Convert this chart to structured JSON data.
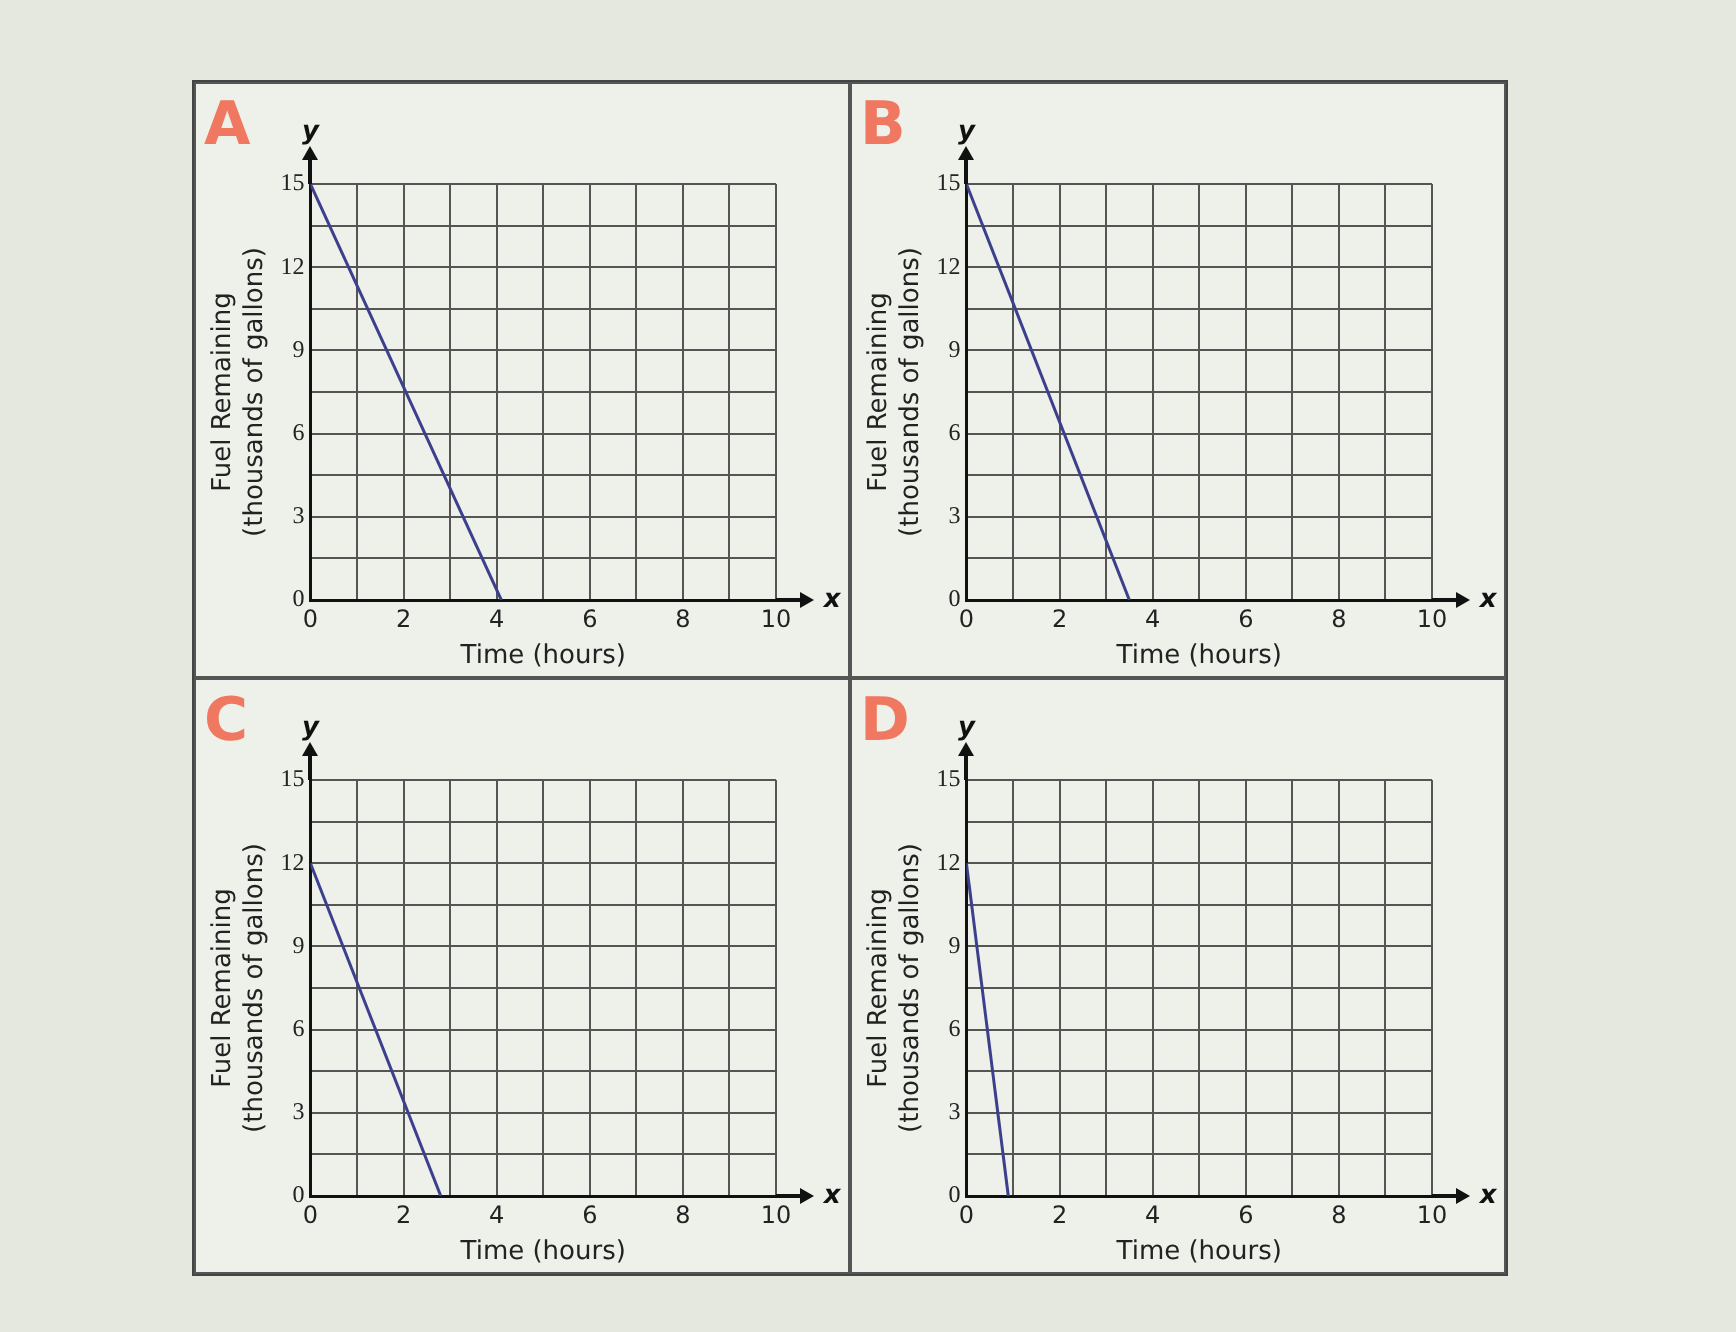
{
  "chart_data": [
    {
      "type": "line",
      "title": "A",
      "xlabel": "Time (hours)",
      "ylabel": "Fuel Remaining\n(thousands of gallons)",
      "annotations": [
        "y",
        "x"
      ],
      "x": [
        0,
        4.1
      ],
      "series": [
        {
          "color": "#3b3f8c",
          "values": [
            15,
            0
          ]
        }
      ],
      "xlim": [
        0,
        10
      ],
      "ylim": [
        0,
        15
      ],
      "xticks": [
        0,
        {
          "value": 1,
          "label": null
        },
        2,
        {
          "value": 3,
          "label": null
        },
        4,
        {
          "value": 5,
          "label": null
        },
        6,
        {
          "value": 7,
          "label": null
        },
        8,
        {
          "value": 9,
          "label": null
        },
        10
      ],
      "yticks": [
        0,
        {
          "value": 1.5,
          "label": null
        },
        3,
        {
          "value": 4.5,
          "label": null
        },
        6,
        {
          "value": 7.5,
          "label": null
        },
        9,
        {
          "value": 10.5,
          "label": null
        },
        12,
        {
          "value": 13.5,
          "label": null
        },
        15
      ],
      "grid": true,
      "legend": false,
      "marker": "none",
      "line_style": "solid"
    },
    {
      "type": "line",
      "title": "B",
      "xlabel": "Time (hours)",
      "ylabel": "Fuel Remaining\n(thousands of gallons)",
      "annotations": [
        "y",
        "x"
      ],
      "x": [
        0,
        3.5
      ],
      "series": [
        {
          "color": "#3b3f8c",
          "values": [
            15,
            0
          ]
        }
      ],
      "xlim": [
        0,
        10
      ],
      "ylim": [
        0,
        15
      ],
      "xticks": [
        0,
        {
          "value": 1,
          "label": null
        },
        2,
        {
          "value": 3,
          "label": null
        },
        4,
        {
          "value": 5,
          "label": null
        },
        6,
        {
          "value": 7,
          "label": null
        },
        8,
        {
          "value": 9,
          "label": null
        },
        10
      ],
      "yticks": [
        0,
        {
          "value": 1.5,
          "label": null
        },
        3,
        {
          "value": 4.5,
          "label": null
        },
        6,
        {
          "value": 7.5,
          "label": null
        },
        9,
        {
          "value": 10.5,
          "label": null
        },
        12,
        {
          "value": 13.5,
          "label": null
        },
        15
      ],
      "grid": true,
      "legend": false,
      "marker": "none",
      "line_style": "solid"
    },
    {
      "type": "line",
      "title": "C",
      "xlabel": "Time (hours)",
      "ylabel": "Fuel Remaining\n(thousands of gallons)",
      "annotations": [
        "y",
        "x"
      ],
      "x": [
        0,
        2.8
      ],
      "series": [
        {
          "color": "#3b3f8c",
          "values": [
            12,
            0
          ]
        }
      ],
      "xlim": [
        0,
        10
      ],
      "ylim": [
        0,
        15
      ],
      "xticks": [
        0,
        {
          "value": 1,
          "label": null
        },
        2,
        {
          "value": 3,
          "label": null
        },
        4,
        {
          "value": 5,
          "label": null
        },
        6,
        {
          "value": 7,
          "label": null
        },
        8,
        {
          "value": 9,
          "label": null
        },
        10
      ],
      "yticks": [
        0,
        {
          "value": 1.5,
          "label": null
        },
        3,
        {
          "value": 4.5,
          "label": null
        },
        6,
        {
          "value": 7.5,
          "label": null
        },
        9,
        {
          "value": 10.5,
          "label": null
        },
        12,
        {
          "value": 13.5,
          "label": null
        },
        15
      ],
      "grid": true,
      "legend": false,
      "marker": "none",
      "line_style": "solid"
    },
    {
      "type": "line",
      "title": "D",
      "xlabel": "Time (hours)",
      "ylabel": "Fuel Remaining\n(thousands of gallons)",
      "annotations": [
        "y",
        "x"
      ],
      "x": [
        0,
        0.9
      ],
      "series": [
        {
          "color": "#3b3f8c",
          "values": [
            12,
            0
          ]
        }
      ],
      "xlim": [
        0,
        10
      ],
      "ylim": [
        0,
        15
      ],
      "xticks": [
        0,
        {
          "value": 1,
          "label": null
        },
        2,
        {
          "value": 3,
          "label": null
        },
        4,
        {
          "value": 5,
          "label": null
        },
        6,
        {
          "value": 7,
          "label": null
        },
        8,
        {
          "value": 9,
          "label": null
        },
        10
      ],
      "yticks": [
        0,
        {
          "value": 1.5,
          "label": null
        },
        3,
        {
          "value": 4.5,
          "label": null
        },
        6,
        {
          "value": 7.5,
          "label": null
        },
        9,
        {
          "value": 10.5,
          "label": null
        },
        12,
        {
          "value": 13.5,
          "label": null
        },
        15
      ],
      "grid": true,
      "legend": false,
      "marker": "none",
      "line_style": "solid"
    }
  ]
}
